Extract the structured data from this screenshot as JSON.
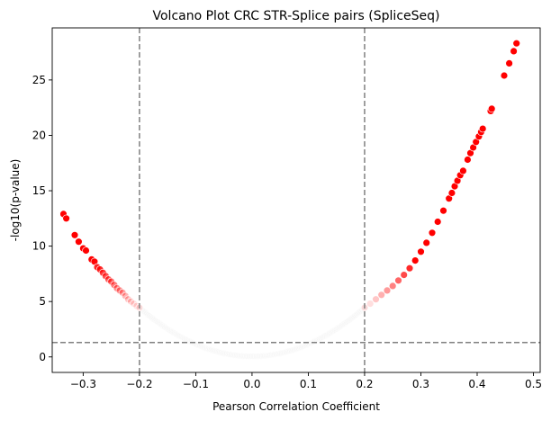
{
  "chart_data": {
    "type": "scatter",
    "title": "Volcano Plot CRC STR-Splice pairs (SpliceSeq)",
    "xlabel": "Pearson Correlation Coefficient",
    "ylabel": "-log10(p-value)",
    "xlim": [
      -0.355,
      0.512
    ],
    "ylim": [
      -1.4,
      29.7
    ],
    "xticks": [
      -0.3,
      -0.2,
      -0.1,
      0.0,
      0.1,
      0.2,
      0.3,
      0.4,
      0.5
    ],
    "xtick_labels": [
      "−0.3",
      "−0.2",
      "−0.1",
      "0.0",
      "0.1",
      "0.2",
      "0.3",
      "0.4",
      "0.5"
    ],
    "yticks": [
      0,
      5,
      10,
      15,
      20,
      25
    ],
    "ytick_labels": [
      "0",
      "5",
      "10",
      "15",
      "20",
      "25"
    ],
    "grid": false,
    "thresholds": {
      "vertical": [
        -0.2,
        0.2
      ],
      "horizontal": [
        1.3
      ]
    },
    "highlight_color": "#ff0000",
    "baseline_color": "#ebebeb",
    "line_color": "#808080",
    "points": [
      {
        "x": -0.335,
        "y": 12.9
      },
      {
        "x": -0.33,
        "y": 12.5
      },
      {
        "x": -0.315,
        "y": 11.0
      },
      {
        "x": -0.308,
        "y": 10.4
      },
      {
        "x": -0.3,
        "y": 9.8
      },
      {
        "x": -0.295,
        "y": 9.6
      },
      {
        "x": -0.285,
        "y": 8.8
      },
      {
        "x": -0.28,
        "y": 8.6
      },
      {
        "x": -0.275,
        "y": 8.1
      },
      {
        "x": -0.27,
        "y": 7.9
      },
      {
        "x": -0.265,
        "y": 7.6
      },
      {
        "x": -0.26,
        "y": 7.3
      },
      {
        "x": -0.255,
        "y": 7.0
      },
      {
        "x": -0.25,
        "y": 6.8
      },
      {
        "x": -0.245,
        "y": 6.5
      },
      {
        "x": -0.24,
        "y": 6.2
      },
      {
        "x": -0.235,
        "y": 6.0
      },
      {
        "x": -0.23,
        "y": 5.8
      },
      {
        "x": -0.225,
        "y": 5.5
      },
      {
        "x": -0.22,
        "y": 5.2
      },
      {
        "x": -0.215,
        "y": 5.0
      },
      {
        "x": -0.21,
        "y": 4.8
      },
      {
        "x": -0.205,
        "y": 4.6
      },
      {
        "x": -0.2,
        "y": 4.45
      },
      {
        "x": 0.2,
        "y": 4.45
      },
      {
        "x": 0.21,
        "y": 4.8
      },
      {
        "x": 0.22,
        "y": 5.2
      },
      {
        "x": 0.23,
        "y": 5.6
      },
      {
        "x": 0.24,
        "y": 6.0
      },
      {
        "x": 0.25,
        "y": 6.4
      },
      {
        "x": 0.26,
        "y": 6.9
      },
      {
        "x": 0.27,
        "y": 7.4
      },
      {
        "x": 0.28,
        "y": 8.0
      },
      {
        "x": 0.29,
        "y": 8.7
      },
      {
        "x": 0.3,
        "y": 9.5
      },
      {
        "x": 0.31,
        "y": 10.3
      },
      {
        "x": 0.32,
        "y": 11.2
      },
      {
        "x": 0.33,
        "y": 12.2
      },
      {
        "x": 0.34,
        "y": 13.2
      },
      {
        "x": 0.35,
        "y": 14.3
      },
      {
        "x": 0.355,
        "y": 14.8
      },
      {
        "x": 0.36,
        "y": 15.4
      },
      {
        "x": 0.365,
        "y": 15.9
      },
      {
        "x": 0.37,
        "y": 16.4
      },
      {
        "x": 0.375,
        "y": 16.8
      },
      {
        "x": 0.383,
        "y": 17.8
      },
      {
        "x": 0.388,
        "y": 18.4
      },
      {
        "x": 0.393,
        "y": 18.9
      },
      {
        "x": 0.398,
        "y": 19.4
      },
      {
        "x": 0.403,
        "y": 19.9
      },
      {
        "x": 0.407,
        "y": 20.3
      },
      {
        "x": 0.41,
        "y": 20.6
      },
      {
        "x": 0.424,
        "y": 22.2
      },
      {
        "x": 0.426,
        "y": 22.4
      },
      {
        "x": 0.448,
        "y": 25.4
      },
      {
        "x": 0.457,
        "y": 26.5
      },
      {
        "x": 0.465,
        "y": 27.6
      },
      {
        "x": 0.47,
        "y": 28.3
      }
    ]
  }
}
